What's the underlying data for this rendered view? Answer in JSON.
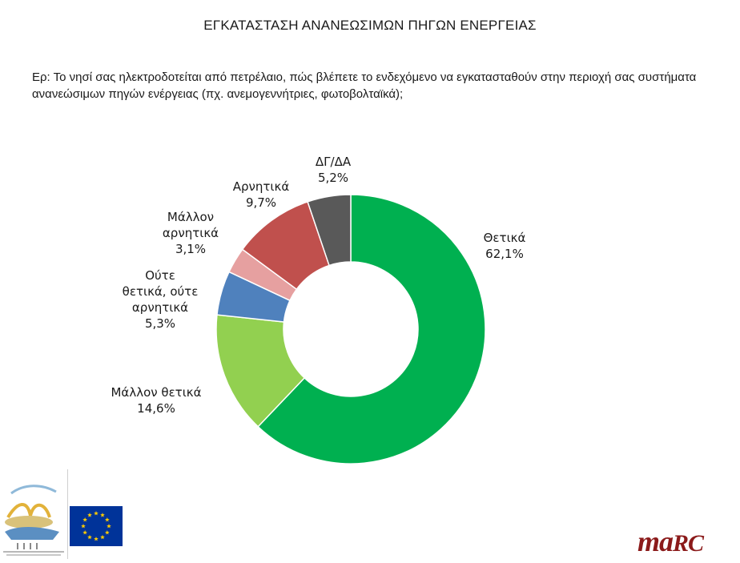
{
  "page": {
    "title": "ΕΓΚΑΤΑΣΤΑΣΗ ΑΝΑΝΕΩΣΙΜΩΝ ΠΗΓΩΝ ΕΝΕΡΓΕΙΑΣ",
    "question": "Ερ: Το νησί σας ηλεκτροδοτείται από πετρέλαιο, πώς βλέπετε το ενδεχόμενο να εγκατασταθούν στην περιοχή σας συστήματα ανανεώσιμων πηγών ενέργειας (πχ. ανεμογεννήτριες, φωτοβολταϊκά);"
  },
  "chart_data": {
    "type": "pie",
    "variant": "donut",
    "title": "",
    "slices": [
      {
        "label": "Θετικά",
        "label_lines": [
          "Θετικά"
        ],
        "value": 62.1,
        "value_text": "62,1%",
        "color": "#00b050"
      },
      {
        "label": "Μάλλον θετικά",
        "label_lines": [
          "Μάλλον θετικά"
        ],
        "value": 14.6,
        "value_text": "14,6%",
        "color": "#92d050"
      },
      {
        "label": "Ούτε θετικά, ούτε αρνητικά",
        "label_lines": [
          "Ούτε",
          "θετικά, ούτε",
          "αρνητικά"
        ],
        "value": 5.3,
        "value_text": "5,3%",
        "color": "#4f81bd"
      },
      {
        "label": "Μάλλον αρνητικά",
        "label_lines": [
          "Μάλλον",
          "αρνητικά"
        ],
        "value": 3.1,
        "value_text": "3,1%",
        "color": "#e6a0a0"
      },
      {
        "label": "Αρνητικά",
        "label_lines": [
          "Αρνητικά"
        ],
        "value": 9.7,
        "value_text": "9,7%",
        "color": "#c0504d"
      },
      {
        "label": "ΔΓ/ΔΑ",
        "label_lines": [
          "ΔΓ/ΔΑ"
        ],
        "value": 5.2,
        "value_text": "5,2%",
        "color": "#595959"
      }
    ],
    "start": "12 o'clock",
    "direction": "clockwise",
    "legend": "none",
    "data_labels": "outside"
  },
  "logos": {
    "project": "lilo-project-logo",
    "eu": "eu-flag-icon",
    "brand": "marc"
  }
}
